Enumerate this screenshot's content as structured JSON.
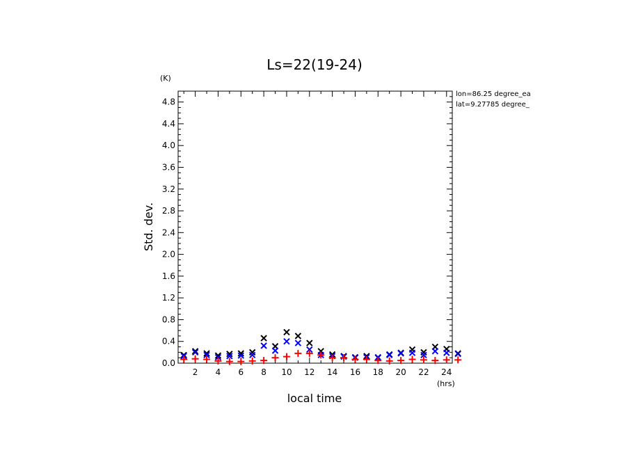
{
  "chart_data": {
    "type": "scatter",
    "title": "Ls=22(19-24)",
    "xlabel": "local time",
    "ylabel": "Std. dev.",
    "yunit": "(K)",
    "xunit": "(hrs)",
    "annotations": [
      "lon=86.25 degree_ea",
      "lat=9.27785 degree_"
    ],
    "xlim": [
      0.5,
      24.5
    ],
    "ylim": [
      0,
      5.0
    ],
    "x_ticks": [
      2,
      4,
      6,
      8,
      10,
      12,
      14,
      16,
      18,
      20,
      22,
      24
    ],
    "y_ticks": [
      0.0,
      0.4,
      0.8,
      1.2,
      1.6,
      2.0,
      2.4,
      2.8,
      3.2,
      3.6,
      4.0,
      4.4,
      4.8
    ],
    "x_tick_labels": [
      "2",
      "4",
      "6",
      "8",
      "10",
      "12",
      "14",
      "16",
      "18",
      "20",
      "22",
      "24"
    ],
    "y_tick_labels": [
      "0.0",
      "0.4",
      "0.8",
      "1.2",
      "1.6",
      "2.0",
      "2.4",
      "2.8",
      "3.2",
      "3.6",
      "4.0",
      "4.4",
      "4.8"
    ],
    "grid": false,
    "x": [
      1,
      2,
      3,
      4,
      5,
      6,
      7,
      8,
      9,
      10,
      11,
      12,
      13,
      14,
      15,
      16,
      17,
      18,
      19,
      20,
      21,
      22,
      23,
      24,
      25
    ],
    "series": [
      {
        "marker": "x",
        "color": "#000000",
        "values": [
          0.15,
          0.22,
          0.18,
          0.14,
          0.17,
          0.18,
          0.2,
          0.46,
          0.31,
          0.57,
          0.5,
          0.37,
          0.22,
          0.16,
          0.13,
          0.11,
          0.13,
          0.1,
          0.16,
          0.19,
          0.25,
          0.2,
          0.3,
          0.26,
          0.18
        ]
      },
      {
        "marker": "x",
        "color": "#0000ff",
        "values": [
          0.13,
          0.2,
          0.15,
          0.11,
          0.13,
          0.14,
          0.15,
          0.32,
          0.23,
          0.4,
          0.37,
          0.25,
          0.15,
          0.13,
          0.12,
          0.1,
          0.11,
          0.11,
          0.15,
          0.18,
          0.19,
          0.15,
          0.22,
          0.19,
          0.17
        ]
      },
      {
        "marker": "+",
        "color": "#ff0000",
        "values": [
          0.07,
          0.08,
          0.07,
          0.04,
          0.03,
          0.03,
          0.04,
          0.05,
          0.1,
          0.12,
          0.18,
          0.18,
          0.15,
          0.1,
          0.1,
          0.07,
          0.07,
          0.05,
          0.04,
          0.05,
          0.07,
          0.06,
          0.05,
          0.06,
          0.06
        ]
      }
    ]
  }
}
